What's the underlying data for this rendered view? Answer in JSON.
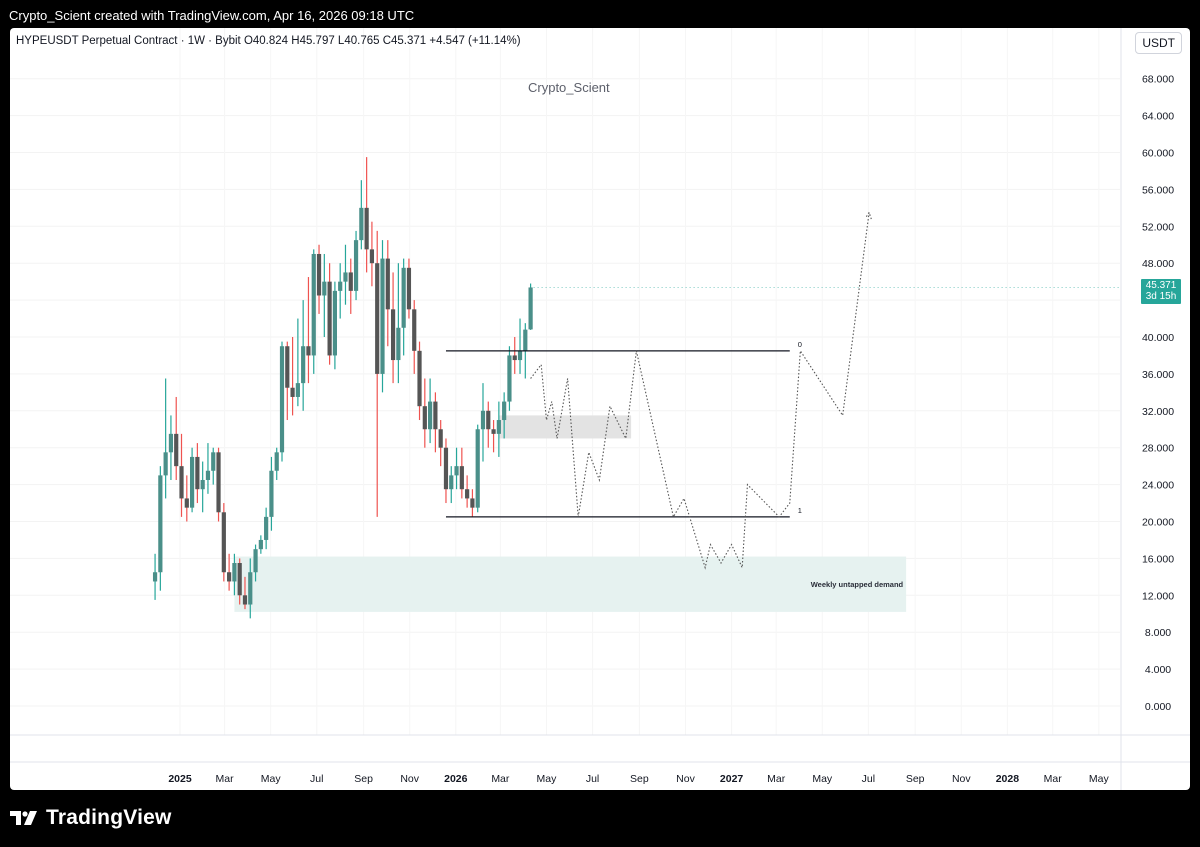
{
  "header": {
    "attribution": "Crypto_Scient created with TradingView.com, Apr 16, 2026 09:18 UTC"
  },
  "symbol_line": "HYPEUSDT Perpetual Contract · 1W · Bybit  O40.824  H45.797  L40.765  C45.371  +4.547 (+11.14%)",
  "currency_button": "USDT",
  "watermark": "Crypto_Scient",
  "price_badge": {
    "price": "45.371",
    "countdown": "3d 15h"
  },
  "footer": {
    "brand": "TradingView"
  },
  "colors": {
    "up": "#26a69a",
    "down": "#ef5350",
    "up_body": "#4a8f89",
    "neutral_body": "#555555",
    "zone": "#e6f2f0",
    "gray_zone": "#e3e3e3",
    "badge": "#26a69a"
  },
  "chart_data": {
    "type": "candlestick",
    "title": "HYPEUSDT Perpetual Contract · 1W · Bybit",
    "ohlc_last": {
      "open": 40.824,
      "high": 45.797,
      "low": 40.765,
      "close": 45.371,
      "change": 4.547,
      "change_pct": 11.14
    },
    "ylim": [
      0,
      70
    ],
    "y_ticks": [
      "0.000",
      "4.000",
      "8.000",
      "12.000",
      "16.000",
      "20.000",
      "24.000",
      "28.000",
      "32.000",
      "36.000",
      "40.000",
      "44.000",
      "48.000",
      "52.000",
      "56.000",
      "60.000",
      "64.000",
      "68.000"
    ],
    "x_ticks": [
      {
        "label": "2025",
        "date": "2025-01-01",
        "bold": true
      },
      {
        "label": "Mar",
        "date": "2025-03-01"
      },
      {
        "label": "May",
        "date": "2025-05-01"
      },
      {
        "label": "Jul",
        "date": "2025-07-01"
      },
      {
        "label": "Sep",
        "date": "2025-09-01"
      },
      {
        "label": "Nov",
        "date": "2025-11-01"
      },
      {
        "label": "2026",
        "date": "2026-01-01",
        "bold": true
      },
      {
        "label": "Mar",
        "date": "2026-03-01"
      },
      {
        "label": "May",
        "date": "2026-05-01"
      },
      {
        "label": "Jul",
        "date": "2026-07-01"
      },
      {
        "label": "Sep",
        "date": "2026-09-01"
      },
      {
        "label": "Nov",
        "date": "2026-11-01"
      },
      {
        "label": "2027",
        "date": "2027-01-01",
        "bold": true
      },
      {
        "label": "Mar",
        "date": "2027-03-01"
      },
      {
        "label": "May",
        "date": "2027-05-01"
      },
      {
        "label": "Jul",
        "date": "2027-07-01"
      },
      {
        "label": "Sep",
        "date": "2027-09-01"
      },
      {
        "label": "Nov",
        "date": "2027-11-01"
      },
      {
        "label": "2028",
        "date": "2028-01-01",
        "bold": true
      },
      {
        "label": "Mar",
        "date": "2028-03-01"
      },
      {
        "label": "May",
        "date": "2028-05-01"
      }
    ],
    "candles": [
      {
        "date": "2024-11-29",
        "o": 13.5,
        "h": 16.5,
        "l": 11.5,
        "c": 14.5
      },
      {
        "date": "2024-12-06",
        "o": 14.5,
        "h": 26,
        "l": 12.5,
        "c": 25
      },
      {
        "date": "2024-12-13",
        "o": 25,
        "h": 35.5,
        "l": 22.5,
        "c": 27.5
      },
      {
        "date": "2024-12-20",
        "o": 27.5,
        "h": 31.5,
        "l": 24.5,
        "c": 29.5
      },
      {
        "date": "2024-12-27",
        "o": 29.5,
        "h": 33.5,
        "l": 24.5,
        "c": 26
      },
      {
        "date": "2025-01-03",
        "o": 26,
        "h": 29.5,
        "l": 20.5,
        "c": 22.5
      },
      {
        "date": "2025-01-10",
        "o": 22.5,
        "h": 25,
        "l": 20,
        "c": 21.5
      },
      {
        "date": "2025-01-17",
        "o": 21.5,
        "h": 28,
        "l": 21,
        "c": 27
      },
      {
        "date": "2025-01-24",
        "o": 27,
        "h": 28.5,
        "l": 22,
        "c": 23.5
      },
      {
        "date": "2025-01-31",
        "o": 23.5,
        "h": 26.5,
        "l": 21,
        "c": 24.5
      },
      {
        "date": "2025-02-07",
        "o": 24.5,
        "h": 28.5,
        "l": 23,
        "c": 25.5
      },
      {
        "date": "2025-02-14",
        "o": 25.5,
        "h": 28,
        "l": 24,
        "c": 27.5
      },
      {
        "date": "2025-02-21",
        "o": 27.5,
        "h": 28,
        "l": 20,
        "c": 21
      },
      {
        "date": "2025-02-28",
        "o": 21,
        "h": 22,
        "l": 13.5,
        "c": 14.5
      },
      {
        "date": "2025-03-07",
        "o": 14.5,
        "h": 16.5,
        "l": 12.5,
        "c": 13.5
      },
      {
        "date": "2025-03-14",
        "o": 13.5,
        "h": 16.5,
        "l": 12,
        "c": 15.5
      },
      {
        "date": "2025-03-21",
        "o": 15.5,
        "h": 16,
        "l": 11,
        "c": 12
      },
      {
        "date": "2025-03-28",
        "o": 12,
        "h": 14,
        "l": 10.5,
        "c": 11
      },
      {
        "date": "2025-04-04",
        "o": 11,
        "h": 16,
        "l": 9.5,
        "c": 14.5
      },
      {
        "date": "2025-04-11",
        "o": 14.5,
        "h": 17.5,
        "l": 13.5,
        "c": 17
      },
      {
        "date": "2025-04-18",
        "o": 17,
        "h": 18.5,
        "l": 16.5,
        "c": 18
      },
      {
        "date": "2025-04-25",
        "o": 18,
        "h": 21.5,
        "l": 17,
        "c": 20.5
      },
      {
        "date": "2025-05-02",
        "o": 20.5,
        "h": 27,
        "l": 19,
        "c": 25.5
      },
      {
        "date": "2025-05-09",
        "o": 25.5,
        "h": 28,
        "l": 24.5,
        "c": 27.5
      },
      {
        "date": "2025-05-16",
        "o": 27.5,
        "h": 39.5,
        "l": 26.5,
        "c": 39
      },
      {
        "date": "2025-05-23",
        "o": 39,
        "h": 39.5,
        "l": 31,
        "c": 34.5
      },
      {
        "date": "2025-05-30",
        "o": 34.5,
        "h": 40,
        "l": 31.5,
        "c": 33.5
      },
      {
        "date": "2025-06-06",
        "o": 33.5,
        "h": 42,
        "l": 32.5,
        "c": 35
      },
      {
        "date": "2025-06-13",
        "o": 35,
        "h": 44,
        "l": 32,
        "c": 39
      },
      {
        "date": "2025-06-20",
        "o": 39,
        "h": 46.5,
        "l": 35,
        "c": 38
      },
      {
        "date": "2025-06-27",
        "o": 38,
        "h": 49.5,
        "l": 36,
        "c": 49
      },
      {
        "date": "2025-07-04",
        "o": 49,
        "h": 50,
        "l": 42.5,
        "c": 44.5
      },
      {
        "date": "2025-07-11",
        "o": 44.5,
        "h": 49,
        "l": 40,
        "c": 46
      },
      {
        "date": "2025-07-18",
        "o": 46,
        "h": 48,
        "l": 37,
        "c": 38
      },
      {
        "date": "2025-07-25",
        "o": 38,
        "h": 46,
        "l": 36.5,
        "c": 45
      },
      {
        "date": "2025-08-01",
        "o": 45,
        "h": 48,
        "l": 42,
        "c": 46
      },
      {
        "date": "2025-08-08",
        "o": 46,
        "h": 50,
        "l": 43.5,
        "c": 47
      },
      {
        "date": "2025-08-15",
        "o": 47,
        "h": 48.5,
        "l": 42.5,
        "c": 45
      },
      {
        "date": "2025-08-22",
        "o": 45,
        "h": 51.5,
        "l": 44,
        "c": 50.5
      },
      {
        "date": "2025-08-29",
        "o": 50.5,
        "h": 57,
        "l": 49.5,
        "c": 54
      },
      {
        "date": "2025-09-05",
        "o": 54,
        "h": 59.5,
        "l": 47,
        "c": 49.5
      },
      {
        "date": "2025-09-12",
        "o": 49.5,
        "h": 52.5,
        "l": 45.5,
        "c": 48
      },
      {
        "date": "2025-09-19",
        "o": 48,
        "h": 51.5,
        "l": 20.5,
        "c": 36
      },
      {
        "date": "2025-09-26",
        "o": 36,
        "h": 50.5,
        "l": 34,
        "c": 48.5
      },
      {
        "date": "2025-10-03",
        "o": 48.5,
        "h": 50.5,
        "l": 39,
        "c": 43
      },
      {
        "date": "2025-10-10",
        "o": 43,
        "h": 47,
        "l": 35,
        "c": 37.5
      },
      {
        "date": "2025-10-17",
        "o": 37.5,
        "h": 48,
        "l": 35,
        "c": 41
      },
      {
        "date": "2025-10-24",
        "o": 41,
        "h": 48.5,
        "l": 38,
        "c": 47.5
      },
      {
        "date": "2025-10-31",
        "o": 47.5,
        "h": 48.5,
        "l": 42,
        "c": 43
      },
      {
        "date": "2025-11-07",
        "o": 43,
        "h": 44,
        "l": 36,
        "c": 38.5
      },
      {
        "date": "2025-11-14",
        "o": 38.5,
        "h": 39.5,
        "l": 31,
        "c": 32.5
      },
      {
        "date": "2025-11-21",
        "o": 32.5,
        "h": 35.5,
        "l": 28,
        "c": 30
      },
      {
        "date": "2025-11-28",
        "o": 30,
        "h": 35.5,
        "l": 28.5,
        "c": 33
      },
      {
        "date": "2025-12-05",
        "o": 33,
        "h": 34,
        "l": 27.5,
        "c": 30
      },
      {
        "date": "2025-12-12",
        "o": 30,
        "h": 31,
        "l": 26,
        "c": 28
      },
      {
        "date": "2025-12-19",
        "o": 28,
        "h": 29,
        "l": 22,
        "c": 23.5
      },
      {
        "date": "2025-12-26",
        "o": 23.5,
        "h": 26,
        "l": 22,
        "c": 25
      },
      {
        "date": "2026-01-02",
        "o": 25,
        "h": 28,
        "l": 23.5,
        "c": 26
      },
      {
        "date": "2026-01-09",
        "o": 26,
        "h": 28,
        "l": 22.5,
        "c": 23.5
      },
      {
        "date": "2026-01-16",
        "o": 23.5,
        "h": 25,
        "l": 21.5,
        "c": 22.5
      },
      {
        "date": "2026-01-23",
        "o": 22.5,
        "h": 23.5,
        "l": 20.5,
        "c": 21.5
      },
      {
        "date": "2026-01-30",
        "o": 21.5,
        "h": 30.5,
        "l": 21,
        "c": 30
      },
      {
        "date": "2026-02-06",
        "o": 30,
        "h": 35,
        "l": 26.5,
        "c": 32
      },
      {
        "date": "2026-02-13",
        "o": 32,
        "h": 33,
        "l": 28,
        "c": 30
      },
      {
        "date": "2026-02-20",
        "o": 30,
        "h": 31,
        "l": 27.5,
        "c": 29.5
      },
      {
        "date": "2026-02-27",
        "o": 29.5,
        "h": 33,
        "l": 27,
        "c": 31
      },
      {
        "date": "2026-03-06",
        "o": 31,
        "h": 34,
        "l": 29,
        "c": 33
      },
      {
        "date": "2026-03-13",
        "o": 33,
        "h": 39,
        "l": 32,
        "c": 38
      },
      {
        "date": "2026-03-20",
        "o": 38,
        "h": 40,
        "l": 36,
        "c": 37.5
      },
      {
        "date": "2026-03-27",
        "o": 37.5,
        "h": 42,
        "l": 36,
        "c": 38.5
      },
      {
        "date": "2026-04-03",
        "o": 38.5,
        "h": 41.5,
        "l": 35.5,
        "c": 40.8
      },
      {
        "date": "2026-04-10",
        "o": 40.824,
        "h": 45.797,
        "l": 40.765,
        "c": 45.371
      }
    ],
    "annotations": {
      "range_top": {
        "price": 38.5,
        "start": "2025-12-19",
        "end": "2027-03-19",
        "label": "0"
      },
      "range_bottom": {
        "price": 20.5,
        "start": "2025-12-19",
        "end": "2027-03-19",
        "label": "1"
      },
      "demand_zone": {
        "top": 16.2,
        "bottom": 10.2,
        "start": "2025-03-14",
        "end": "2027-08-20",
        "label": "Weekly untapped demand"
      },
      "gray_zone": {
        "top": 31.5,
        "bottom": 29,
        "start": "2026-02-27",
        "end": "2026-08-21"
      },
      "projected_path": [
        {
          "date": "2026-04-10",
          "price": 35.5
        },
        {
          "date": "2026-04-24",
          "price": 37
        },
        {
          "date": "2026-05-01",
          "price": 31
        },
        {
          "date": "2026-05-08",
          "price": 33
        },
        {
          "date": "2026-05-15",
          "price": 29
        },
        {
          "date": "2026-05-29",
          "price": 35.5
        },
        {
          "date": "2026-06-12",
          "price": 20.5
        },
        {
          "date": "2026-06-26",
          "price": 27.5
        },
        {
          "date": "2026-07-10",
          "price": 24.5
        },
        {
          "date": "2026-07-24",
          "price": 32.5
        },
        {
          "date": "2026-08-14",
          "price": 29
        },
        {
          "date": "2026-08-28",
          "price": 38.5
        },
        {
          "date": "2026-10-16",
          "price": 20.5
        },
        {
          "date": "2026-10-30",
          "price": 22.5
        },
        {
          "date": "2026-11-27",
          "price": 15
        },
        {
          "date": "2026-12-04",
          "price": 17.5
        },
        {
          "date": "2026-12-18",
          "price": 15.5
        },
        {
          "date": "2027-01-01",
          "price": 17.5
        },
        {
          "date": "2027-01-15",
          "price": 15
        },
        {
          "date": "2027-01-22",
          "price": 24
        },
        {
          "date": "2027-03-05",
          "price": 20.5
        },
        {
          "date": "2027-03-19",
          "price": 22
        },
        {
          "date": "2027-04-02",
          "price": 38.5
        },
        {
          "date": "2027-05-28",
          "price": 31.5
        },
        {
          "date": "2027-07-02",
          "price": 53.5
        }
      ]
    }
  }
}
